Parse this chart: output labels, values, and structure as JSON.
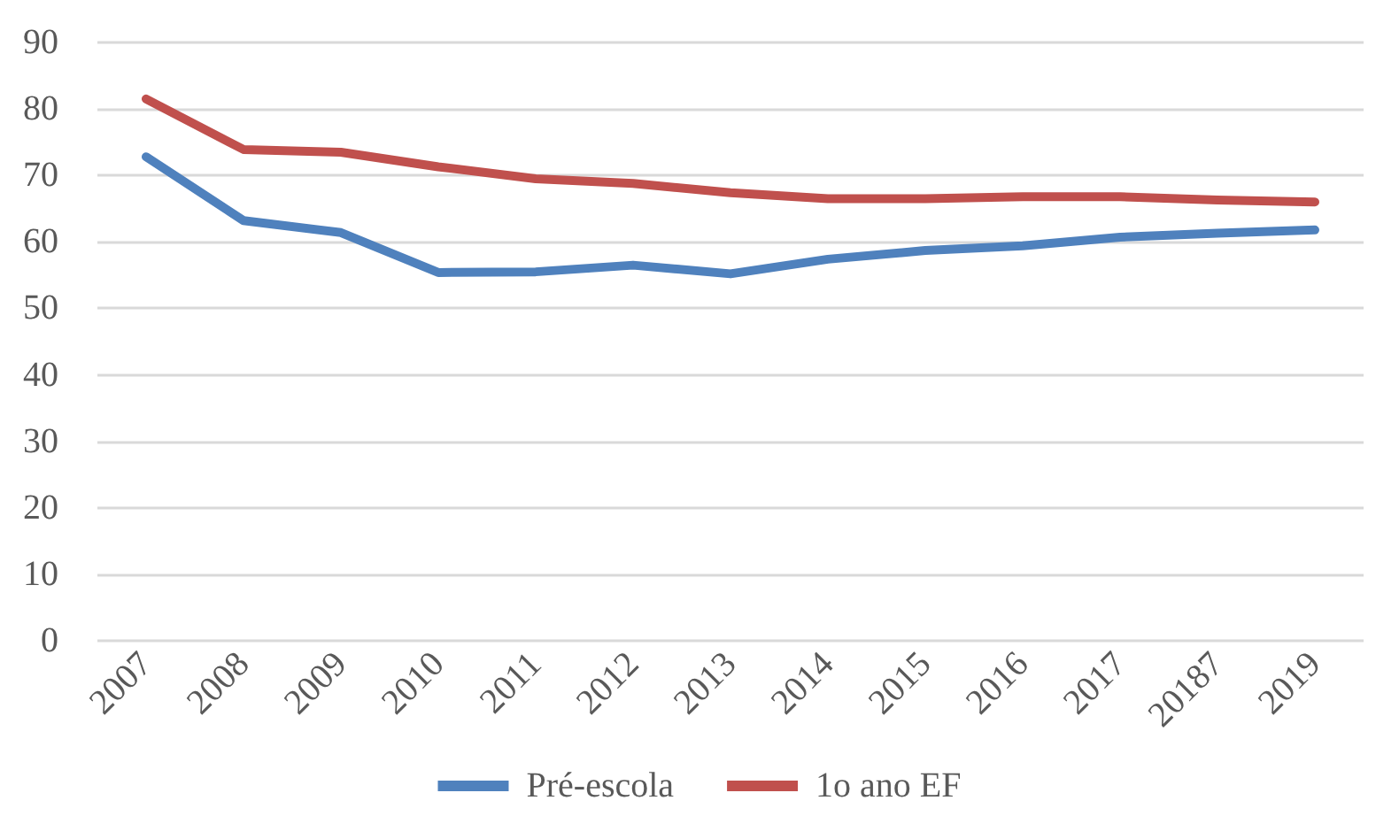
{
  "chart_data": {
    "type": "line",
    "categories": [
      "2007",
      "2008",
      "2009",
      "2010",
      "2011",
      "2012",
      "2013",
      "2014",
      "2015",
      "2016",
      "2017",
      "20187",
      "2019"
    ],
    "series": [
      {
        "name": "Pré-escola",
        "color": "#4f81bd",
        "values": [
          72.8,
          63.2,
          61.4,
          55.4,
          55.5,
          56.5,
          55.2,
          57.4,
          58.7,
          59.4,
          60.7,
          61.3,
          61.8
        ]
      },
      {
        "name": "1o ano EF",
        "color": "#c0504d",
        "values": [
          81.5,
          73.9,
          73.5,
          71.3,
          69.5,
          68.8,
          67.4,
          66.5,
          66.5,
          66.8,
          66.8,
          66.3,
          66.0
        ]
      }
    ],
    "ylim": [
      0,
      90
    ],
    "yticks": [
      0,
      10,
      20,
      30,
      40,
      50,
      60,
      70,
      80,
      90
    ],
    "grid": "y",
    "legend": "bottom",
    "marker": "none",
    "line_style": "solid"
  }
}
